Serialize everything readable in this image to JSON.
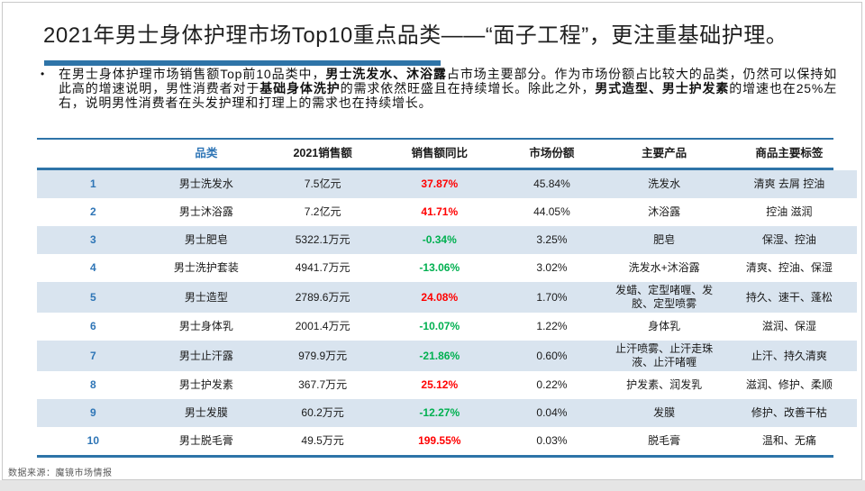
{
  "colors": {
    "accent_blue": "#2E74A8",
    "header_text_blue": "#2E75B6",
    "row_stripe": "#D9E4EF",
    "yoy_up_red": "#FF0000",
    "yoy_down_green": "#00B050",
    "footer_gray": "#595959"
  },
  "title": "2021年男士身体护理市场Top10重点品类——“面子工程”，更注重基础护理。",
  "bullet": {
    "marker": "•",
    "segments": [
      {
        "text": "在男士身体护理市场销售额Top前10品类中，",
        "bold": false
      },
      {
        "text": "男士洗发水、沐浴露",
        "bold": true
      },
      {
        "text": "占市场主要部分。作为市场份额占比较大的品类，仍然可以保持如此高的增速说明，男性消费者对于",
        "bold": false
      },
      {
        "text": "基础身体洗护",
        "bold": true
      },
      {
        "text": "的需求依然旺盛且在持续增长。除此之外，",
        "bold": false
      },
      {
        "text": "男式造型、男士护发素",
        "bold": true
      },
      {
        "text": "的增速也在25%左右，说明男性消费者在头发护理和打理上的需求也在持续增长。",
        "bold": false
      }
    ]
  },
  "table": {
    "headers": [
      "品类",
      "2021销售额",
      "销售额同比",
      "市场份额",
      "主要产品",
      "商品主要标签"
    ],
    "rows": [
      {
        "rank": "1",
        "category": "男士洗发水",
        "sales": "7.5亿元",
        "yoy": "37.87%",
        "trend": "up",
        "share": "45.84%",
        "products": "洗发水",
        "tags": "清爽 去屑 控油"
      },
      {
        "rank": "2",
        "category": "男士沐浴露",
        "sales": "7.2亿元",
        "yoy": "41.71%",
        "trend": "up",
        "share": "44.05%",
        "products": "沐浴露",
        "tags": "控油 滋润"
      },
      {
        "rank": "3",
        "category": "男士肥皂",
        "sales": "5322.1万元",
        "yoy": "-0.34%",
        "trend": "down",
        "share": "3.25%",
        "products": "肥皂",
        "tags": "保湿、控油"
      },
      {
        "rank": "4",
        "category": "男士洗护套装",
        "sales": "4941.7万元",
        "yoy": "-13.06%",
        "trend": "down",
        "share": "3.02%",
        "products": "洗发水+沐浴露",
        "tags": "清爽、控油、保湿"
      },
      {
        "rank": "5",
        "category": "男士造型",
        "sales": "2789.6万元",
        "yoy": "24.08%",
        "trend": "up",
        "share": "1.70%",
        "products": "发蜡、定型啫喱、发胶、定型喷雾",
        "tags": "持久、速干、蓬松"
      },
      {
        "rank": "6",
        "category": "男士身体乳",
        "sales": "2001.4万元",
        "yoy": "-10.07%",
        "trend": "down",
        "share": "1.22%",
        "products": "身体乳",
        "tags": "滋润、保湿"
      },
      {
        "rank": "7",
        "category": "男士止汗露",
        "sales": "979.9万元",
        "yoy": "-21.86%",
        "trend": "down",
        "share": "0.60%",
        "products": "止汗喷雾、止汗走珠液、止汗啫喱",
        "tags": "止汗、持久清爽"
      },
      {
        "rank": "8",
        "category": "男士护发素",
        "sales": "367.7万元",
        "yoy": "25.12%",
        "trend": "up",
        "share": "0.22%",
        "products": "护发素、润发乳",
        "tags": "滋润、修护、柔顺"
      },
      {
        "rank": "9",
        "category": "男士发膜",
        "sales": "60.2万元",
        "yoy": "-12.27%",
        "trend": "down",
        "share": "0.04%",
        "products": "发膜",
        "tags": "修护、改善干枯"
      },
      {
        "rank": "10",
        "category": "男士脱毛膏",
        "sales": "49.5万元",
        "yoy": "199.55%",
        "trend": "up",
        "share": "0.03%",
        "products": "脱毛膏",
        "tags": "温和、无痛"
      }
    ]
  },
  "footer": "数据来源：魔镜市场情报"
}
